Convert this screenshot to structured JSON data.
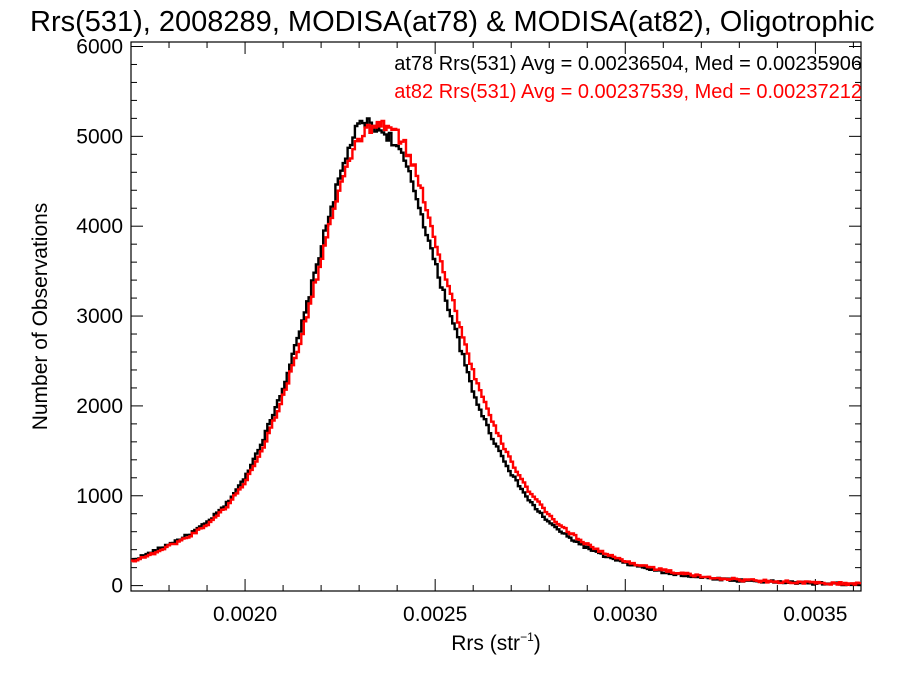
{
  "chart_data": {
    "type": "line",
    "title": "Rrs(531), 2008289, MODISA(at78) & MODISA(at82), Oligotrophic",
    "xlabel_base": "Rrs (str",
    "xlabel_sup": "−1",
    "xlabel_close": ")",
    "ylabel": "Number of Observations",
    "xlim": [
      0.0017,
      0.00362
    ],
    "ylim": [
      -60,
      6050
    ],
    "xticks": [
      {
        "value": 0.002,
        "label": "0.0020"
      },
      {
        "value": 0.0025,
        "label": "0.0025"
      },
      {
        "value": 0.003,
        "label": "0.0030"
      },
      {
        "value": 0.0035,
        "label": "0.0035"
      }
    ],
    "yticks": [
      {
        "value": 0,
        "label": "0"
      },
      {
        "value": 1000,
        "label": "1000"
      },
      {
        "value": 2000,
        "label": "2000"
      },
      {
        "value": 3000,
        "label": "3000"
      },
      {
        "value": 4000,
        "label": "4000"
      },
      {
        "value": 5000,
        "label": "5000"
      },
      {
        "value": 6000,
        "label": "6000"
      }
    ],
    "grid": false,
    "legend_position": "top-right",
    "series": [
      {
        "name": "at78 Rrs(531) Avg = 0.00236504, Med = 0.00235906",
        "color": "#000000",
        "x": [
          0.0017,
          0.00175,
          0.0018,
          0.00185,
          0.0019,
          0.00195,
          0.002,
          0.00205,
          0.0021,
          0.00215,
          0.0022,
          0.00222,
          0.00225,
          0.00228,
          0.0023,
          0.00232,
          0.00234,
          0.00236,
          0.00238,
          0.0024,
          0.00242,
          0.00245,
          0.00248,
          0.0025,
          0.00252,
          0.00255,
          0.00258,
          0.0026,
          0.00265,
          0.0027,
          0.00275,
          0.0028,
          0.00285,
          0.0029,
          0.00295,
          0.003,
          0.0031,
          0.0032,
          0.0033,
          0.0034,
          0.0035,
          0.00362
        ],
        "y": [
          280,
          360,
          460,
          560,
          700,
          900,
          1200,
          1650,
          2200,
          2900,
          3750,
          4100,
          4550,
          4950,
          5120,
          5150,
          5120,
          5060,
          5000,
          4880,
          4720,
          4350,
          3900,
          3580,
          3300,
          2900,
          2450,
          2150,
          1650,
          1250,
          930,
          700,
          540,
          420,
          320,
          250,
          150,
          90,
          60,
          40,
          25,
          15
        ]
      },
      {
        "name": "at82 Rrs(531) Avg = 0.00237539, Med = 0.00237212",
        "color": "#ff0000",
        "x": [
          0.0017,
          0.00175,
          0.0018,
          0.00185,
          0.0019,
          0.00195,
          0.002,
          0.00205,
          0.0021,
          0.00215,
          0.0022,
          0.00222,
          0.00225,
          0.00228,
          0.0023,
          0.00232,
          0.00234,
          0.00236,
          0.00238,
          0.0024,
          0.00242,
          0.00245,
          0.00248,
          0.0025,
          0.00252,
          0.00255,
          0.00258,
          0.0026,
          0.00265,
          0.0027,
          0.00275,
          0.0028,
          0.00285,
          0.0029,
          0.00295,
          0.003,
          0.0031,
          0.0032,
          0.0033,
          0.0034,
          0.0035,
          0.00362
        ],
        "y": [
          270,
          340,
          440,
          540,
          680,
          870,
          1150,
          1560,
          2100,
          2780,
          3620,
          3980,
          4400,
          4800,
          4980,
          5060,
          5100,
          5130,
          5100,
          5020,
          4900,
          4600,
          4180,
          3850,
          3550,
          3120,
          2680,
          2380,
          1820,
          1380,
          1030,
          780,
          600,
          460,
          350,
          270,
          170,
          100,
          65,
          45,
          28,
          18
        ]
      }
    ]
  }
}
